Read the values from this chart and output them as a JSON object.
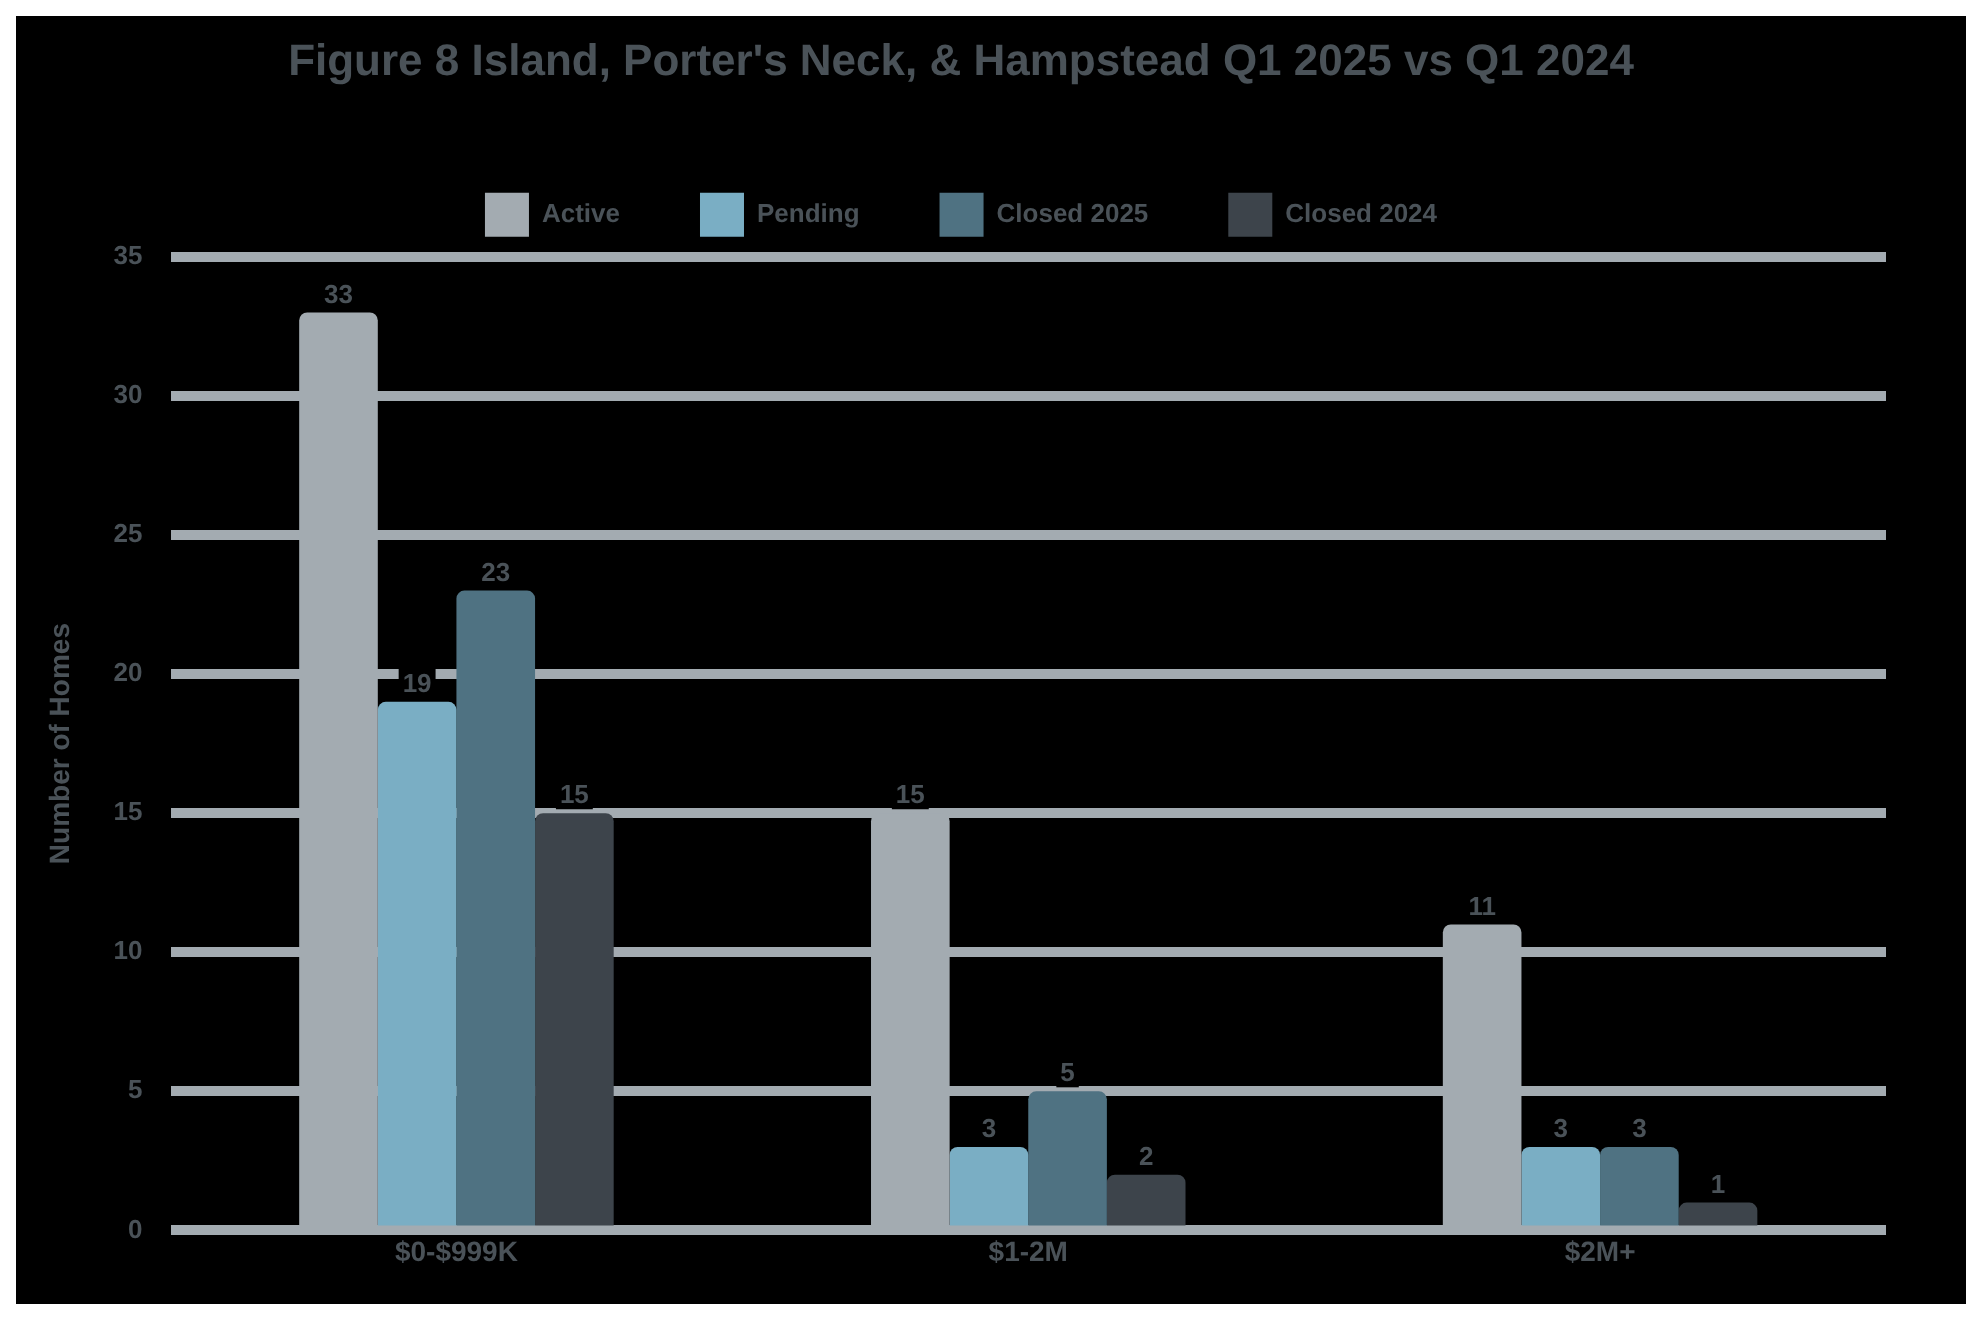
{
  "chart_data": {
    "type": "bar",
    "title": "Figure 8 Island, Porter's Neck, & Hampstead Q1 2025 vs Q1 2024",
    "ylabel": "Number of Homes",
    "categories": [
      "$0-$999K",
      "$1-2M",
      "$2M+"
    ],
    "series": [
      {
        "name": "Active",
        "color": "#a3abb1",
        "values": [
          33,
          15,
          11
        ]
      },
      {
        "name": "Pending",
        "color": "#7aaec4",
        "values": [
          19,
          3,
          3
        ]
      },
      {
        "name": "Closed 2025",
        "color": "#4f7282",
        "values": [
          23,
          5,
          3
        ]
      },
      {
        "name": "Closed 2024",
        "color": "#3d444b",
        "values": [
          15,
          2,
          1
        ]
      }
    ],
    "ylim": [
      0,
      35
    ],
    "yticks": [
      0,
      5,
      10,
      15,
      20,
      25,
      30,
      35
    ],
    "grid": "y",
    "legend": "top",
    "data_labels": true
  }
}
